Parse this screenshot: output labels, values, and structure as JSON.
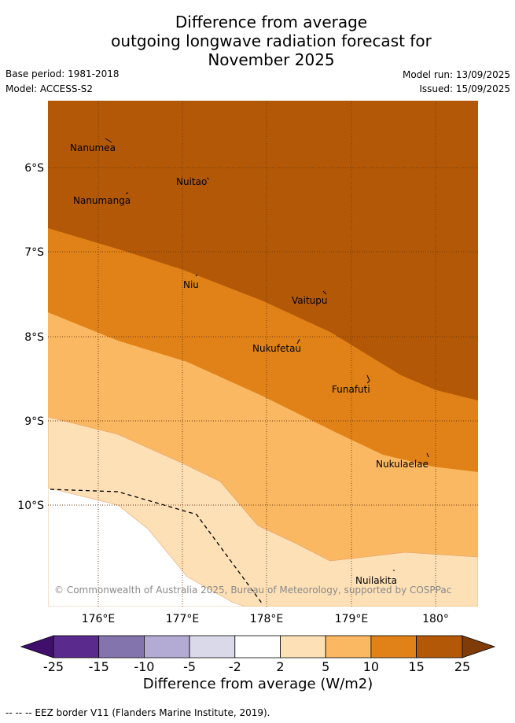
{
  "title": {
    "line1": "Difference from average",
    "line2": "outgoing longwave radiation forecast for",
    "line3": "November 2025"
  },
  "meta": {
    "base_period": "Base period: 1981-2018",
    "model": "Model: ACCESS-S2",
    "model_run": "Model run: 13/09/2025",
    "issued": "Issued: 15/09/2025"
  },
  "axes": {
    "lat_labels": [
      "6°S",
      "7°S",
      "8°S",
      "9°S",
      "10°S"
    ],
    "lon_labels": [
      "176°E",
      "177°E",
      "178°E",
      "179°E",
      "180°"
    ]
  },
  "places": [
    {
      "name": "Nanumea"
    },
    {
      "name": "Nuitao"
    },
    {
      "name": "Nanumanga"
    },
    {
      "name": "Niu"
    },
    {
      "name": "Vaitupu"
    },
    {
      "name": "Nukufetau"
    },
    {
      "name": "Funafuti"
    },
    {
      "name": "Nukulaelae"
    },
    {
      "name": "Nuilakita"
    }
  ],
  "copyright": "© Commonwealth of Australia 2025, Bureau of Meteorology, supported by COSPPac",
  "colorbar": {
    "title": "Difference from average (W/m2)",
    "ticks": [
      "-25",
      "-15",
      "-10",
      "-5",
      "-2",
      "2",
      "5",
      "10",
      "15",
      "25"
    ],
    "colors": {
      "under": "#3f0f6b",
      "c1": "#5a2a8c",
      "c2": "#8474ae",
      "c3": "#b3abd3",
      "c4": "#d9d9ea",
      "c5": "#ffffff",
      "c6": "#fee0b6",
      "c7": "#fbb862",
      "c8": "#e08218",
      "c9": "#b35806",
      "over": "#7f3b08"
    }
  },
  "footnote": "--  --  -- EEZ border V11 (Flanders Marine Institute, 2019)."
}
